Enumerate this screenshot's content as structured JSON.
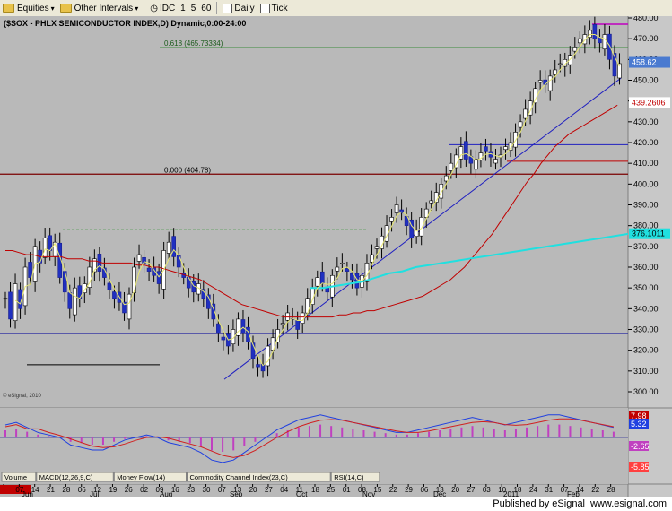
{
  "toolbar": {
    "items": [
      {
        "label": "Equities",
        "icon": "folder-icon"
      },
      {
        "label": "Other Intervals",
        "icon": "folder-icon"
      },
      {
        "label": "IDC",
        "icon": "clock-icon"
      },
      {
        "label": "1"
      },
      {
        "label": "5"
      },
      {
        "label": "60"
      },
      {
        "label": "Daily",
        "icon": "checkbox-icon"
      },
      {
        "label": "Tick",
        "icon": "checkbox-icon"
      }
    ]
  },
  "chart_data": {
    "type": "candlestick",
    "title": "($SOX - PHLX SEMICONDUCTOR INDEX,D) Dynamic,0:00-24:00",
    "ylim": [
      295,
      482
    ],
    "y_ticks": [
      300,
      310,
      320,
      330,
      340,
      350,
      360,
      370,
      380,
      390,
      400,
      410,
      420,
      430,
      440,
      450,
      460,
      470,
      480
    ],
    "x_tick_labels": [
      "05/24/10",
      "07",
      "14",
      "21",
      "28",
      "06",
      "12",
      "19",
      "26",
      "02",
      "09",
      "16",
      "23",
      "30",
      "07",
      "13",
      "20",
      "27",
      "04",
      "11",
      "18",
      "25",
      "01",
      "08",
      "15",
      "22",
      "29",
      "06",
      "13",
      "20",
      "27",
      "03",
      "10",
      "18",
      "24",
      "31",
      "07",
      "14",
      "22",
      "28"
    ],
    "month_labels": [
      "Jun",
      "Jul",
      "Aug",
      "Sep",
      "Oct",
      "Nov",
      "Dec",
      "2011",
      "Feb"
    ],
    "annotations": {
      "fib_618": "0.618 (465.73334)",
      "fib_000": "0.000 (404.78)",
      "price_tag": "458.62",
      "red_tag": "439.2606",
      "cyan_tag": "376.1011",
      "credit": "© eSignal, 2010"
    },
    "indicator_tabs": [
      "Volume",
      "MACD(12,26,9,C)",
      "Money Flow(14)",
      "Commodity Channel Index(23,C)",
      "RSI(14,C)"
    ],
    "macd": {
      "tags": [
        "7.98",
        "5.32",
        "-2.65",
        "-5.85"
      ]
    },
    "closes": [
      345,
      335,
      352,
      340,
      360,
      355,
      370,
      362,
      374,
      368,
      372,
      355,
      348,
      340,
      350,
      345,
      352,
      360,
      364,
      358,
      355,
      349,
      345,
      343,
      338,
      347,
      360,
      366,
      362,
      358,
      356,
      352,
      368,
      372,
      365,
      360,
      355,
      350,
      348,
      352,
      345,
      340,
      335,
      328,
      325,
      322,
      330,
      335,
      328,
      324,
      316,
      312,
      310,
      322,
      326,
      330,
      333,
      338,
      335,
      330,
      338,
      345,
      350,
      355,
      352,
      348,
      356,
      360,
      362,
      358,
      354,
      350,
      356,
      362,
      366,
      370,
      375,
      380,
      384,
      390,
      386,
      380,
      374,
      378,
      384,
      388,
      392,
      396,
      400,
      404,
      410,
      414,
      418,
      412,
      410,
      412,
      415,
      416,
      413,
      412,
      414,
      418,
      420,
      425,
      430,
      436,
      440,
      446,
      450,
      448,
      452,
      455,
      458,
      460,
      462,
      466,
      470,
      472,
      474,
      470,
      468,
      472,
      460,
      452,
      458
    ],
    "opens_offset": "derived",
    "ma_red": [
      368,
      368,
      367,
      366,
      366,
      365,
      365,
      365,
      365,
      364,
      364,
      364,
      363,
      363,
      362,
      362,
      362,
      362,
      362,
      361,
      361,
      360,
      360,
      359,
      358,
      357,
      356,
      355,
      354,
      352,
      350,
      348,
      346,
      344,
      342,
      341,
      340,
      339,
      338,
      337,
      336,
      336,
      336,
      336,
      336,
      336,
      336,
      336,
      337,
      337,
      338,
      338,
      339,
      339,
      340,
      341,
      342,
      343,
      344,
      345,
      346,
      348,
      350,
      352,
      354,
      357,
      360,
      364,
      368,
      372,
      376,
      381,
      386,
      391,
      396,
      401,
      405,
      410,
      414,
      418,
      421,
      424,
      426,
      428,
      430,
      432,
      434,
      436,
      438
    ],
    "ma_cyan": [
      350,
      350,
      351,
      352,
      353,
      355,
      357,
      358,
      360,
      361,
      362,
      363,
      364,
      365,
      366,
      367,
      368,
      369,
      370,
      371,
      372,
      373,
      374,
      375,
      376
    ],
    "macd_line": [
      0.5,
      0.6,
      0.4,
      0.2,
      0.1,
      0.0,
      -0.3,
      -0.4,
      -0.5,
      -0.5,
      -0.3,
      -0.1,
      0.0,
      0.1,
      0.0,
      -0.2,
      -0.3,
      -0.4,
      -0.6,
      -0.9,
      -1.0,
      -0.9,
      -0.6,
      -0.3,
      0.0,
      0.3,
      0.5,
      0.7,
      0.8,
      0.9,
      0.8,
      0.7,
      0.6,
      0.5,
      0.4,
      0.3,
      0.2,
      0.2,
      0.3,
      0.4,
      0.5,
      0.6,
      0.7,
      0.8,
      0.7,
      0.6,
      0.5,
      0.6,
      0.7,
      0.8,
      0.9,
      0.9,
      0.8,
      0.7,
      0.6,
      0.5,
      0.4
    ]
  },
  "footer": {
    "text": "Published by eSignal",
    "url": "www.esignal.com"
  }
}
